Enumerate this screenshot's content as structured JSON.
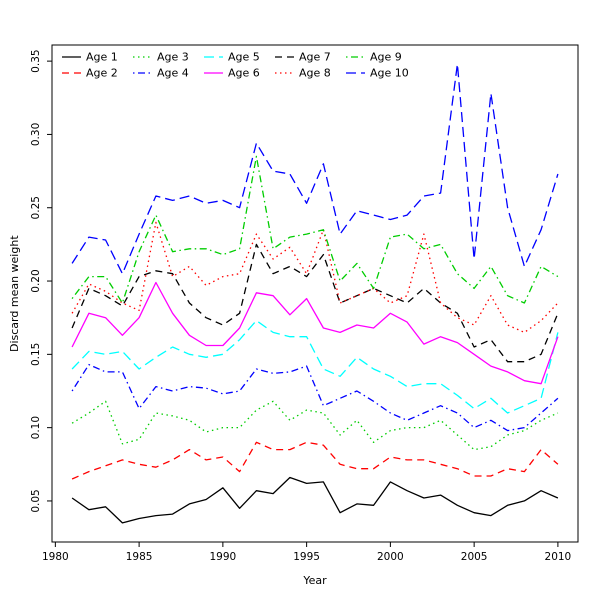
{
  "chart_data": {
    "type": "line",
    "title": "",
    "xlabel": "Year",
    "ylabel": "Discard mean weight",
    "xlim": [
      1979.8,
      2011.2
    ],
    "ylim": [
      0.022,
      0.361
    ],
    "xticks": [
      1980,
      1985,
      1990,
      1995,
      2000,
      2005,
      2010
    ],
    "yticks": [
      0.05,
      0.1,
      0.15,
      0.2,
      0.25,
      0.3,
      0.35
    ],
    "ytick_labels": [
      "0.05",
      "0.10",
      "0.15",
      "0.20",
      "0.25",
      "0.30",
      "0.35"
    ],
    "grid": false,
    "legend_position": "top-inside, 2 rows x 5 columns, column-major",
    "x": [
      1981,
      1982,
      1983,
      1984,
      1985,
      1986,
      1987,
      1988,
      1989,
      1990,
      1991,
      1992,
      1993,
      1994,
      1995,
      1996,
      1997,
      1998,
      1999,
      2000,
      2001,
      2002,
      2003,
      2004,
      2005,
      2006,
      2007,
      2008,
      2009,
      2010
    ],
    "series": [
      {
        "name": "Age 1",
        "color": "#000000",
        "linestyle": "solid",
        "values": [
          0.052,
          0.044,
          0.046,
          0.035,
          0.038,
          0.04,
          0.041,
          0.048,
          0.051,
          0.059,
          0.045,
          0.057,
          0.055,
          0.066,
          0.062,
          0.063,
          0.042,
          0.048,
          0.047,
          0.063,
          0.057,
          0.052,
          0.054,
          0.047,
          0.042,
          0.04,
          0.047,
          0.05,
          0.057,
          0.052
        ]
      },
      {
        "name": "Age 2",
        "color": "#ff0000",
        "linestyle": "dashed",
        "values": [
          0.065,
          0.07,
          0.074,
          0.078,
          0.075,
          0.073,
          0.078,
          0.085,
          0.078,
          0.08,
          0.07,
          0.09,
          0.085,
          0.085,
          0.09,
          0.088,
          0.075,
          0.072,
          0.072,
          0.08,
          0.078,
          0.078,
          0.075,
          0.072,
          0.067,
          0.067,
          0.072,
          0.07,
          0.085,
          0.075
        ]
      },
      {
        "name": "Age 3",
        "color": "#00cd00",
        "linestyle": "dotted",
        "values": [
          0.103,
          0.11,
          0.118,
          0.089,
          0.092,
          0.11,
          0.108,
          0.105,
          0.097,
          0.1,
          0.1,
          0.112,
          0.118,
          0.105,
          0.112,
          0.11,
          0.095,
          0.105,
          0.09,
          0.098,
          0.1,
          0.1,
          0.105,
          0.095,
          0.085,
          0.087,
          0.095,
          0.098,
          0.105,
          0.11
        ]
      },
      {
        "name": "Age 4",
        "color": "#0000ff",
        "linestyle": "dotdash",
        "values": [
          0.125,
          0.143,
          0.138,
          0.138,
          0.113,
          0.128,
          0.125,
          0.128,
          0.127,
          0.123,
          0.125,
          0.14,
          0.137,
          0.138,
          0.142,
          0.115,
          0.12,
          0.125,
          0.118,
          0.11,
          0.105,
          0.11,
          0.115,
          0.11,
          0.1,
          0.105,
          0.098,
          0.1,
          0.11,
          0.12
        ]
      },
      {
        "name": "Age 5",
        "color": "#00ffff",
        "linestyle": "longdash",
        "values": [
          0.14,
          0.152,
          0.15,
          0.152,
          0.14,
          0.148,
          0.155,
          0.15,
          0.148,
          0.15,
          0.16,
          0.173,
          0.165,
          0.162,
          0.162,
          0.14,
          0.135,
          0.148,
          0.14,
          0.135,
          0.128,
          0.13,
          0.13,
          0.122,
          0.113,
          0.12,
          0.11,
          0.115,
          0.12,
          0.165
        ]
      },
      {
        "name": "Age 6",
        "color": "#ff00ff",
        "linestyle": "solid",
        "values": [
          0.155,
          0.178,
          0.175,
          0.163,
          0.175,
          0.199,
          0.178,
          0.163,
          0.156,
          0.156,
          0.168,
          0.192,
          0.19,
          0.177,
          0.188,
          0.168,
          0.165,
          0.17,
          0.168,
          0.178,
          0.172,
          0.157,
          0.162,
          0.158,
          0.15,
          0.142,
          0.138,
          0.132,
          0.13,
          0.162
        ]
      },
      {
        "name": "Age 7",
        "color": "#000000",
        "linestyle": "dashed",
        "values": [
          0.168,
          0.195,
          0.19,
          0.183,
          0.203,
          0.207,
          0.205,
          0.185,
          0.175,
          0.17,
          0.178,
          0.225,
          0.205,
          0.21,
          0.203,
          0.218,
          0.185,
          0.19,
          0.195,
          0.19,
          0.185,
          0.195,
          0.185,
          0.178,
          0.155,
          0.16,
          0.145,
          0.145,
          0.15,
          0.178
        ]
      },
      {
        "name": "Age 8",
        "color": "#ff0000",
        "linestyle": "dotted",
        "values": [
          0.178,
          0.198,
          0.193,
          0.185,
          0.18,
          0.24,
          0.203,
          0.21,
          0.197,
          0.203,
          0.205,
          0.232,
          0.215,
          0.223,
          0.205,
          0.235,
          0.185,
          0.19,
          0.195,
          0.185,
          0.19,
          0.232,
          0.185,
          0.175,
          0.17,
          0.19,
          0.17,
          0.165,
          0.173,
          0.185
        ]
      },
      {
        "name": "Age 9",
        "color": "#00cd00",
        "linestyle": "dotdash",
        "values": [
          0.188,
          0.203,
          0.203,
          0.185,
          0.22,
          0.245,
          0.22,
          0.222,
          0.222,
          0.218,
          0.222,
          0.285,
          0.222,
          0.23,
          0.232,
          0.235,
          0.2,
          0.212,
          0.195,
          0.23,
          0.232,
          0.222,
          0.225,
          0.205,
          0.195,
          0.21,
          0.19,
          0.185,
          0.21,
          0.203
        ]
      },
      {
        "name": "Age 10",
        "color": "#0000ff",
        "linestyle": "longdash",
        "values": [
          0.212,
          0.23,
          0.228,
          0.205,
          0.232,
          0.258,
          0.255,
          0.258,
          0.253,
          0.255,
          0.25,
          0.294,
          0.275,
          0.273,
          0.253,
          0.28,
          0.232,
          0.248,
          0.245,
          0.242,
          0.245,
          0.258,
          0.26,
          0.348,
          0.215,
          0.328,
          0.25,
          0.21,
          0.235,
          0.273
        ]
      }
    ]
  }
}
